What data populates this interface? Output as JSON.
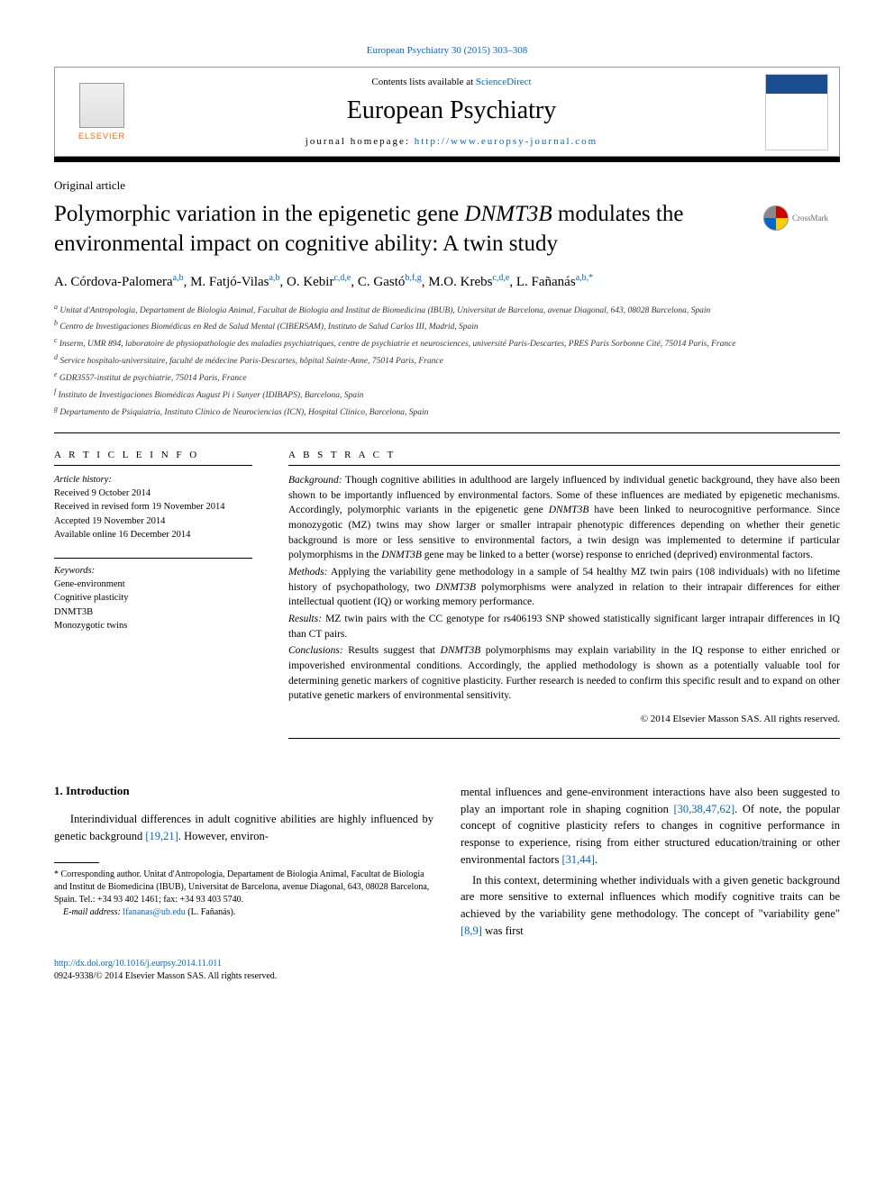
{
  "colors": {
    "link": "#0066cc",
    "text": "#000000",
    "elsevier_orange": "#ff6600",
    "background": "#ffffff"
  },
  "header": {
    "top_citation": "European Psychiatry 30 (2015) 303–308",
    "contents_prefix": "Contents lists available at ",
    "contents_link": "ScienceDirect",
    "journal_title": "European Psychiatry",
    "homepage_prefix": "journal homepage: ",
    "homepage_link": "http://www.europsy-journal.com",
    "elsevier_label": "ELSEVIER",
    "crossmark_label": "CrossMark"
  },
  "article": {
    "type": "Original article",
    "title_pre": "Polymorphic variation in the epigenetic gene ",
    "title_gene": "DNMT3B",
    "title_post": " modulates the environmental impact on cognitive ability: A twin study",
    "authors": [
      {
        "name": "A. Córdova-Palomera",
        "aff": "a,b"
      },
      {
        "name": "M. Fatjó-Vilas",
        "aff": "a,b"
      },
      {
        "name": "O. Kebir",
        "aff": "c,d,e"
      },
      {
        "name": "C. Gastó",
        "aff": "b,f,g"
      },
      {
        "name": "M.O. Krebs",
        "aff": "c,d,e"
      },
      {
        "name": "L. Fañanás",
        "aff": "a,b,*"
      }
    ],
    "affiliations": [
      {
        "sup": "a",
        "text": "Unitat d'Antropologia, Departament de Biologia Animal, Facultat de Biologia and Institut de Biomedicina (IBUB), Universitat de Barcelona, avenue Diagonal, 643, 08028 Barcelona, Spain"
      },
      {
        "sup": "b",
        "text": "Centro de Investigaciones Biomédicas en Red de Salud Mental (CIBERSAM), Instituto de Salud Carlos III, Madrid, Spain"
      },
      {
        "sup": "c",
        "text": "Inserm, UMR 894, laboratoire de physiopathologie des maladies psychiatriques, centre de psychiatrie et neurosciences, université Paris-Descartes, PRES Paris Sorbonne Cité, 75014 Paris, France"
      },
      {
        "sup": "d",
        "text": "Service hospitalo-universitaire, faculté de médecine Paris-Descartes, hôpital Sainte-Anne, 75014 Paris, France"
      },
      {
        "sup": "e",
        "text": "GDR3557-institut de psychiatrie, 75014 Paris, France"
      },
      {
        "sup": "f",
        "text": "Instituto de Investigaciones Biomédicas August Pi i Sunyer (IDIBAPS), Barcelona, Spain"
      },
      {
        "sup": "g",
        "text": "Departamento de Psiquiatría, Instituto Clínico de Neurociencias (ICN), Hospital Clínico, Barcelona, Spain"
      }
    ]
  },
  "info": {
    "article_info_heading": "A R T I C L E   I N F O",
    "abstract_heading": "A B S T R A C T",
    "history_label": "Article history:",
    "history": [
      "Received 9 October 2014",
      "Received in revised form 19 November 2014",
      "Accepted 19 November 2014",
      "Available online 16 December 2014"
    ],
    "keywords_label": "Keywords:",
    "keywords": [
      "Gene-environment",
      "Cognitive plasticity",
      "DNMT3B",
      "Monozygotic twins"
    ]
  },
  "abstract": {
    "background_label": "Background:",
    "background_pre": " Though cognitive abilities in adulthood are largely influenced by individual genetic background, they have also been shown to be importantly influenced by environmental factors. Some of these influences are mediated by epigenetic mechanisms. Accordingly, polymorphic variants in the epigenetic gene ",
    "background_gene": "DNMT3B",
    "background_mid": " have been linked to neurocognitive performance. Since monozygotic (MZ) twins may show larger or smaller intrapair phenotypic differences depending on whether their genetic background is more or less sensitive to environmental factors, a twin design was implemented to determine if particular polymorphisms in the ",
    "background_gene2": "DNMT3B",
    "background_post": " gene may be linked to a better (worse) response to enriched (deprived) environmental factors.",
    "methods_label": "Methods:",
    "methods_pre": " Applying the variability gene methodology in a sample of 54 healthy MZ twin pairs (108 individuals) with no lifetime history of psychopathology, two ",
    "methods_gene": "DNMT3B",
    "methods_post": " polymorphisms were analyzed in relation to their intrapair differences for either intellectual quotient (IQ) or working memory performance.",
    "results_label": "Results:",
    "results_text": " MZ twin pairs with the CC genotype for rs406193 SNP showed statistically significant larger intrapair differences in IQ than CT pairs.",
    "conclusions_label": "Conclusions:",
    "conclusions_pre": " Results suggest that ",
    "conclusions_gene": "DNMT3B",
    "conclusions_post": " polymorphisms may explain variability in the IQ response to either enriched or impoverished environmental conditions. Accordingly, the applied methodology is shown as a potentially valuable tool for determining genetic markers of cognitive plasticity. Further research is needed to confirm this specific result and to expand on other putative genetic markers of environmental sensitivity.",
    "copyright": "© 2014 Elsevier Masson SAS. All rights reserved."
  },
  "body": {
    "intro_heading": "1. Introduction",
    "col1_para1_pre": "Interindividual differences in adult cognitive abilities are highly influenced by genetic background ",
    "col1_para1_ref": "[19,21]",
    "col1_para1_post": ". However, environ-",
    "footnote_label": "* Corresponding author. Unitat d'Antropologia, Departament de Biologia Animal, Facultat de Biologia and Institut de Biomedicina (IBUB), Universitat de Barcelona, avenue Diagonal, 643, 08028 Barcelona, Spain. Tel.: +34 93 402 1461; fax: +34 93 403 5740.",
    "footnote_email_label": "E-mail address:",
    "footnote_email": "lfananas@ub.edu",
    "footnote_email_person": " (L. Fañanás).",
    "col2_para1_pre": "mental influences and gene-environment interactions have also been suggested to play an important role in shaping cognition ",
    "col2_para1_ref": "[30,38,47,62]",
    "col2_para1_mid": ". Of note, the popular concept of cognitive plasticity refers to changes in cognitive performance in response to experience, rising from either structured education/training or other environmental factors ",
    "col2_para1_ref2": "[31,44]",
    "col2_para1_post": ".",
    "col2_para2_pre": "In this context, determining whether individuals with a given genetic background are more sensitive to external influences which modify cognitive traits can be achieved by the variability gene methodology. The concept of \"variability gene\" ",
    "col2_para2_ref": "[8,9]",
    "col2_para2_post": " was first"
  },
  "footer": {
    "doi": "http://dx.doi.org/10.1016/j.eurpsy.2014.11.011",
    "issn_copyright": "0924-9338/© 2014 Elsevier Masson SAS. All rights reserved."
  }
}
